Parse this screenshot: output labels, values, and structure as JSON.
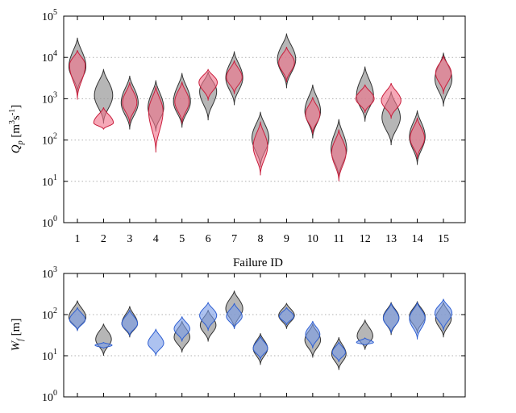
{
  "colors": {
    "grey_fill": "#9a9a9a",
    "grey_stroke": "#333333",
    "red_fill": "#f0738a",
    "red_stroke": "#c81e3c",
    "blue_fill": "#7b9de6",
    "blue_stroke": "#2f5fd1"
  },
  "chart_data": [
    {
      "type": "violin",
      "yscale": "log",
      "ylim": [
        1,
        100000
      ],
      "grid": "horizontal-dotted",
      "ylabel": {
        "main": "Q",
        "sub": "p",
        "unit_open": " [m",
        "sup1": "3",
        "unit_mid": "s",
        "sup2": "-1",
        "unit_close": "]"
      },
      "y_ticks": [
        {
          "value": 1,
          "base": "10",
          "exp": "0"
        },
        {
          "value": 10,
          "base": "10",
          "exp": "1"
        },
        {
          "value": 100,
          "base": "10",
          "exp": "2"
        },
        {
          "value": 1000,
          "base": "10",
          "exp": "3"
        },
        {
          "value": 10000,
          "base": "10",
          "exp": "4"
        },
        {
          "value": 100000,
          "base": "10",
          "exp": "5"
        }
      ],
      "xlabel": "Failure ID",
      "categories": [
        "1",
        "2",
        "3",
        "4",
        "5",
        "6",
        "7",
        "8",
        "9",
        "10",
        "11",
        "12",
        "13",
        "14",
        "15"
      ],
      "series": [
        {
          "style": "grey",
          "distributions": [
            {
              "min": 1400,
              "max": 30000,
              "mode": 6000,
              "width": 0.65
            },
            {
              "min": 250,
              "max": 5200,
              "mode": 1200,
              "width": 0.7
            },
            {
              "min": 180,
              "max": 3600,
              "mode": 800,
              "width": 0.65
            },
            {
              "min": 160,
              "max": 2800,
              "mode": 600,
              "width": 0.6
            },
            {
              "min": 200,
              "max": 4200,
              "mode": 850,
              "width": 0.65
            },
            {
              "min": 300,
              "max": 4500,
              "mode": 1500,
              "width": 0.65
            },
            {
              "min": 700,
              "max": 14000,
              "mode": 3200,
              "width": 0.65
            },
            {
              "min": 22,
              "max": 480,
              "mode": 110,
              "width": 0.65
            },
            {
              "min": 1800,
              "max": 38000,
              "mode": 9000,
              "width": 0.7
            },
            {
              "min": 110,
              "max": 2200,
              "mode": 500,
              "width": 0.6
            },
            {
              "min": 12,
              "max": 320,
              "mode": 60,
              "width": 0.6
            },
            {
              "min": 280,
              "max": 6000,
              "mode": 1200,
              "width": 0.65
            },
            {
              "min": 75,
              "max": 1500,
              "mode": 350,
              "width": 0.7
            },
            {
              "min": 25,
              "max": 520,
              "mode": 120,
              "width": 0.6
            },
            {
              "min": 650,
              "max": 13000,
              "mode": 3000,
              "width": 0.65
            }
          ]
        },
        {
          "style": "red",
          "distributions": [
            {
              "min": 950,
              "max": 15000,
              "mode": 6500,
              "width": 0.6
            },
            {
              "min": 180,
              "max": 620,
              "mode": 260,
              "width": 0.75
            },
            {
              "min": 250,
              "max": 2500,
              "mode": 800,
              "width": 0.55
            },
            {
              "min": 50,
              "max": 2000,
              "mode": 500,
              "width": 0.55
            },
            {
              "min": 250,
              "max": 2600,
              "mode": 850,
              "width": 0.55
            },
            {
              "min": 900,
              "max": 5200,
              "mode": 2500,
              "width": 0.7
            },
            {
              "min": 1300,
              "max": 8500,
              "mode": 3300,
              "width": 0.6
            },
            {
              "min": 14,
              "max": 280,
              "mode": 70,
              "width": 0.55
            },
            {
              "min": 2500,
              "max": 18000,
              "mode": 7500,
              "width": 0.6
            },
            {
              "min": 140,
              "max": 1100,
              "mode": 420,
              "width": 0.55
            },
            {
              "min": 10,
              "max": 180,
              "mode": 50,
              "width": 0.55
            },
            {
              "min": 450,
              "max": 2200,
              "mode": 1000,
              "width": 0.7
            },
            {
              "min": 330,
              "max": 2400,
              "mode": 900,
              "width": 0.75
            },
            {
              "min": 35,
              "max": 350,
              "mode": 110,
              "width": 0.55
            },
            {
              "min": 1300,
              "max": 11000,
              "mode": 4200,
              "width": 0.6
            }
          ]
        }
      ]
    },
    {
      "type": "violin",
      "yscale": "log",
      "ylim": [
        1,
        1000
      ],
      "grid": "horizontal-dotted",
      "ylabel": {
        "main": "W",
        "sub": "f",
        "unit_open": " [m]"
      },
      "y_ticks": [
        {
          "value": 1,
          "base": "10",
          "exp": "0"
        },
        {
          "value": 10,
          "base": "10",
          "exp": "1"
        },
        {
          "value": 100,
          "base": "10",
          "exp": "2"
        },
        {
          "value": 1000,
          "base": "10",
          "exp": "3"
        }
      ],
      "categories": [
        "1",
        "2",
        "3",
        "4",
        "5",
        "6",
        "7",
        "8",
        "9",
        "10",
        "11",
        "12",
        "13",
        "14",
        "15"
      ],
      "series": [
        {
          "style": "grey",
          "distributions": [
            {
              "min": 40,
              "max": 220,
              "mode": 85,
              "width": 0.65
            },
            {
              "min": 10,
              "max": 60,
              "mode": 25,
              "width": 0.6
            },
            {
              "min": 28,
              "max": 160,
              "mode": 60,
              "width": 0.6
            },
            null,
            {
              "min": 12,
              "max": 70,
              "mode": 28,
              "width": 0.6
            },
            {
              "min": 22,
              "max": 130,
              "mode": 55,
              "width": 0.6
            },
            {
              "min": 45,
              "max": 380,
              "mode": 140,
              "width": 0.65
            },
            {
              "min": 6,
              "max": 35,
              "mode": 15,
              "width": 0.55
            },
            {
              "min": 45,
              "max": 190,
              "mode": 95,
              "width": 0.6
            },
            {
              "min": 9,
              "max": 60,
              "mode": 24,
              "width": 0.6
            },
            {
              "min": 4.5,
              "max": 28,
              "mode": 11,
              "width": 0.55
            },
            {
              "min": 14,
              "max": 75,
              "mode": 30,
              "width": 0.6
            },
            {
              "min": 32,
              "max": 200,
              "mode": 85,
              "width": 0.6
            },
            {
              "min": 35,
              "max": 210,
              "mode": 90,
              "width": 0.6
            },
            {
              "min": 28,
              "max": 200,
              "mode": 80,
              "width": 0.6
            }
          ]
        },
        {
          "style": "blue",
          "distributions": [
            {
              "min": 40,
              "max": 150,
              "mode": 75,
              "width": 0.6
            },
            {
              "min": 15,
              "max": 21,
              "mode": 18,
              "width": 0.65
            },
            {
              "min": 30,
              "max": 130,
              "mode": 60,
              "width": 0.6
            },
            {
              "min": 10,
              "max": 45,
              "mode": 20,
              "width": 0.6
            },
            {
              "min": 22,
              "max": 90,
              "mode": 45,
              "width": 0.6
            },
            {
              "min": 40,
              "max": 200,
              "mode": 95,
              "width": 0.65
            },
            {
              "min": 45,
              "max": 190,
              "mode": 90,
              "width": 0.6
            },
            {
              "min": 8,
              "max": 30,
              "mode": 15,
              "width": 0.55
            },
            {
              "min": 55,
              "max": 150,
              "mode": 90,
              "width": 0.55
            },
            {
              "min": 15,
              "max": 70,
              "mode": 33,
              "width": 0.55
            },
            {
              "min": 7,
              "max": 22,
              "mode": 12,
              "width": 0.5
            },
            {
              "min": 18,
              "max": 27,
              "mode": 21,
              "width": 0.65
            },
            {
              "min": 35,
              "max": 190,
              "mode": 80,
              "width": 0.6
            },
            {
              "min": 25,
              "max": 200,
              "mode": 80,
              "width": 0.6
            },
            {
              "min": 40,
              "max": 240,
              "mode": 110,
              "width": 0.65
            }
          ]
        }
      ]
    }
  ]
}
